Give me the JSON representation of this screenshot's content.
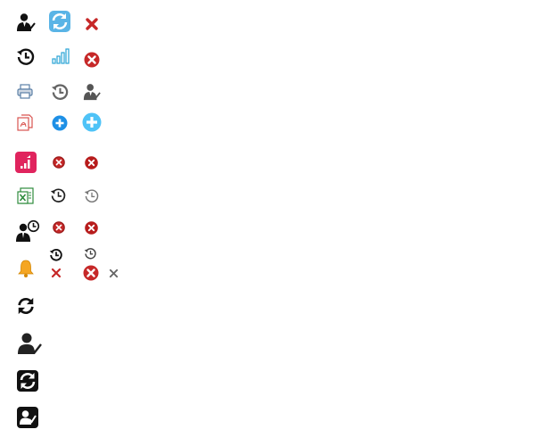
{
  "colors": {
    "black": "#111111",
    "red": "#c62828",
    "dark_red": "#b71c1c",
    "blue_sync": "#3b9fd8",
    "blue_plus": "#1e90e6",
    "light_blue_plus": "#4fc3f7",
    "chart_blue": "#29a3d6",
    "pdf_red": "#d9534f",
    "excel_green": "#2e8b3d",
    "bell_orange": "#f5a623",
    "grey": "#666666",
    "light_grey": "#888888",
    "printer_blue": "#5a7fa6",
    "pink_red": "#e0245e"
  },
  "icons": [
    "user-check-icon",
    "sync-icon",
    "close-icon",
    "history-icon",
    "bar-chart-icon",
    "close-circle-icon",
    "printer-icon",
    "history-icon",
    "user-check-icon",
    "pdf-file-icon",
    "plus-circle-icon",
    "plus-circle-icon",
    "report-chart-icon",
    "close-circle-icon",
    "close-circle-icon",
    "excel-file-icon",
    "history-icon",
    "history-icon",
    "user-clock-icon",
    "close-circle-icon",
    "close-circle-icon",
    "bell-icon",
    "history-icon",
    "history-icon",
    "close-icon",
    "close-circle-icon",
    "close-icon",
    "sync-icon",
    "user-check-icon",
    "sync-square-icon",
    "user-check-square-icon"
  ]
}
